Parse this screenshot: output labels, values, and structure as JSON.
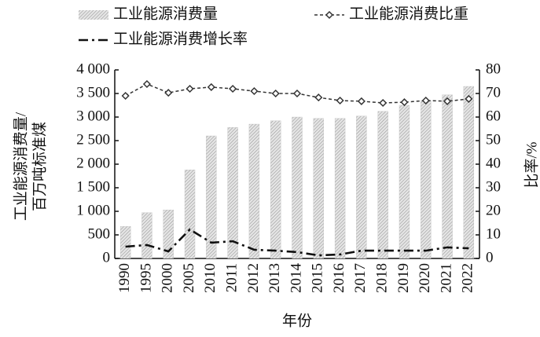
{
  "chart_data": {
    "type": "bar-line",
    "categories": [
      "1990",
      "1995",
      "2000",
      "2005",
      "2010",
      "2011",
      "2012",
      "2013",
      "2014",
      "2015",
      "2016",
      "2017",
      "2018",
      "2019",
      "2020",
      "2021",
      "2022"
    ],
    "series": [
      {
        "name": "工业能源消费量",
        "type": "bar",
        "color": "#b5b5b5",
        "values": [
          680,
          970,
          1030,
          1880,
          2600,
          2780,
          2850,
          2920,
          3000,
          2970,
          2970,
          3020,
          3120,
          3250,
          3350,
          3470,
          3650
        ]
      },
      {
        "name": "工业能源消费比重",
        "type": "line",
        "axis": "y2",
        "color": "#333333",
        "style": "dashed-diamond",
        "values": [
          69,
          74,
          70.3,
          72,
          72.7,
          72,
          71,
          70,
          70,
          68.3,
          67,
          66.7,
          66,
          66.3,
          67,
          66.7,
          67.7
        ]
      },
      {
        "name": "工业能源消费增长率",
        "type": "line",
        "axis": "y2",
        "color": "#111111",
        "style": "dash-dot",
        "values": [
          5,
          5.7,
          3,
          12.3,
          6.7,
          7.3,
          3.7,
          3.3,
          2.7,
          1.3,
          1.7,
          3.3,
          3.3,
          3.3,
          3.3,
          4.7,
          4.3
        ]
      }
    ],
    "ylabel": [
      "工业能源消费量/",
      "百万吨标准煤"
    ],
    "y2label": "比率/%",
    "xlabel": "年份",
    "ylim": [
      0,
      4000
    ],
    "yticks": [
      0,
      500,
      {
        "value": 1000,
        "label": "1 000"
      },
      {
        "value": 1500,
        "label": "1 500"
      },
      {
        "value": 2000,
        "label": "2 000"
      },
      {
        "value": 2500,
        "label": "2 500"
      },
      {
        "value": 3000,
        "label": "3 000"
      },
      {
        "value": 3500,
        "label": "3 500"
      },
      {
        "value": 4000,
        "label": "4 000"
      }
    ],
    "y2lim": [
      0,
      80
    ],
    "y2ticks": [
      0,
      10,
      20,
      30,
      40,
      50,
      60,
      70,
      80
    ]
  }
}
